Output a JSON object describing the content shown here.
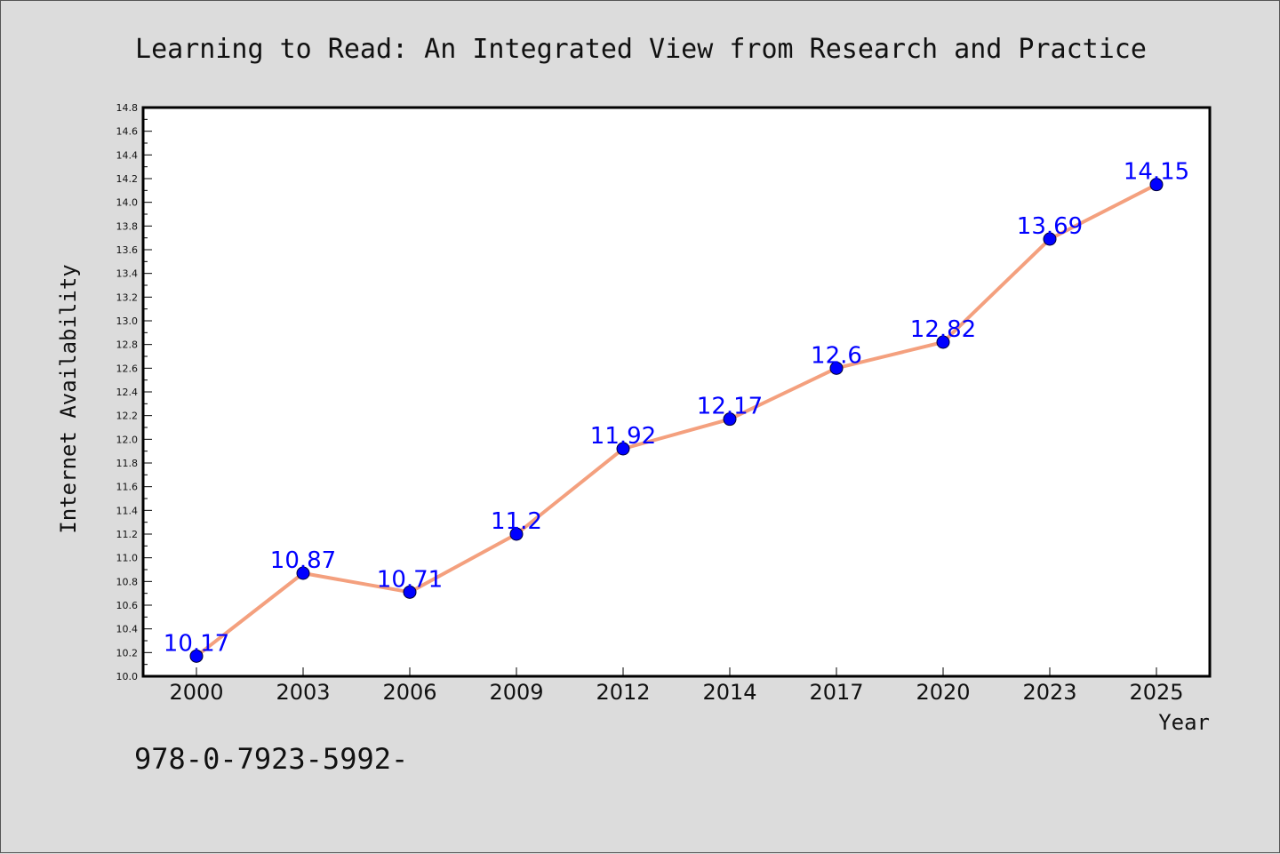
{
  "chart_data": {
    "type": "line",
    "title": "Learning to Read: An Integrated View from Research and Practice",
    "xlabel": "Year",
    "ylabel": "Internet Availability",
    "categories": [
      "2000",
      "2003",
      "2006",
      "2009",
      "2012",
      "2014",
      "2017",
      "2020",
      "2023",
      "2025"
    ],
    "series": [
      {
        "values": [
          10.17,
          10.87,
          10.71,
          11.2,
          11.92,
          12.17,
          12.6,
          12.82,
          13.69,
          14.15
        ],
        "line_color": "#f4a07e",
        "marker_color": "#0000ff"
      }
    ],
    "ylim": [
      10.0,
      14.8
    ],
    "yticks": [
      "10.0",
      "10.2",
      "10.4",
      "10.6",
      "10.8",
      "11.0",
      "11.2",
      "11.4",
      "11.6",
      "11.8",
      "12.0",
      "12.2",
      "12.4",
      "12.6",
      "12.8",
      "13.0",
      "13.2",
      "13.4",
      "13.6",
      "13.8",
      "14.0",
      "14.2",
      "14.4",
      "14.6",
      "14.8"
    ],
    "data_labels": [
      "10.17",
      "10.87",
      "10.71",
      "11.2",
      "11.92",
      "12.17",
      "12.6",
      "12.82",
      "13.69",
      "14.15"
    ],
    "grid": false,
    "legend": "none"
  },
  "footer": {
    "isbn": "978-0-7923-5992-"
  },
  "colors": {
    "background": "#dcdcdc",
    "plot_background": "#ffffff",
    "line": "#f4a07e",
    "marker": "#0000ff",
    "data_label": "#0000ff"
  }
}
